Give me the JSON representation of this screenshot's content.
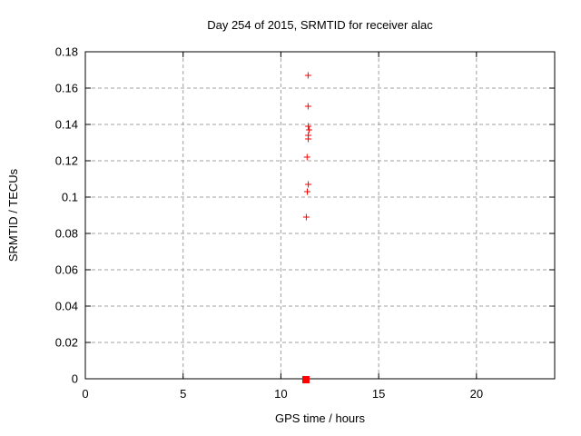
{
  "figure": {
    "background": "#ffffff",
    "title": "Day 254 of 2015, SRMTID for receiver alac"
  },
  "chart_data": {
    "type": "scatter",
    "title": "Day 254 of 2015, SRMTID for receiver alac",
    "xlabel": "GPS time / hours",
    "ylabel": "SRMTID / TECUs",
    "xlim": [
      0,
      24
    ],
    "ylim": [
      0,
      0.18
    ],
    "xticks": [
      0,
      5,
      10,
      15,
      20
    ],
    "xtick_labels": [
      "0",
      "5",
      "10",
      "15",
      "20"
    ],
    "yticks": [
      0,
      0.02,
      0.04,
      0.06,
      0.08,
      0.1,
      0.12,
      0.14,
      0.16,
      0.18
    ],
    "ytick_labels": [
      "0",
      "0.02",
      "0.04",
      "0.06",
      "0.08",
      "0.1",
      "0.12",
      "0.14",
      "0.16",
      "0.18"
    ],
    "grid": true,
    "legend": "none",
    "series": [
      {
        "name": "srmtid-points",
        "marker": "plus",
        "color": "#ff0000",
        "points": [
          {
            "x": 11.39,
            "y": 0.167
          },
          {
            "x": 11.39,
            "y": 0.15
          },
          {
            "x": 11.4,
            "y": 0.139
          },
          {
            "x": 11.44,
            "y": 0.137
          },
          {
            "x": 11.4,
            "y": 0.134
          },
          {
            "x": 11.4,
            "y": 0.132
          },
          {
            "x": 11.34,
            "y": 0.122
          },
          {
            "x": 11.4,
            "y": 0.107
          },
          {
            "x": 11.35,
            "y": 0.103
          },
          {
            "x": 11.3,
            "y": 0.089
          }
        ]
      },
      {
        "name": "zero-cluster",
        "marker": "filled-square",
        "color": "#ff0000",
        "points": [
          {
            "x": 11.28,
            "y": 0
          }
        ]
      }
    ]
  }
}
